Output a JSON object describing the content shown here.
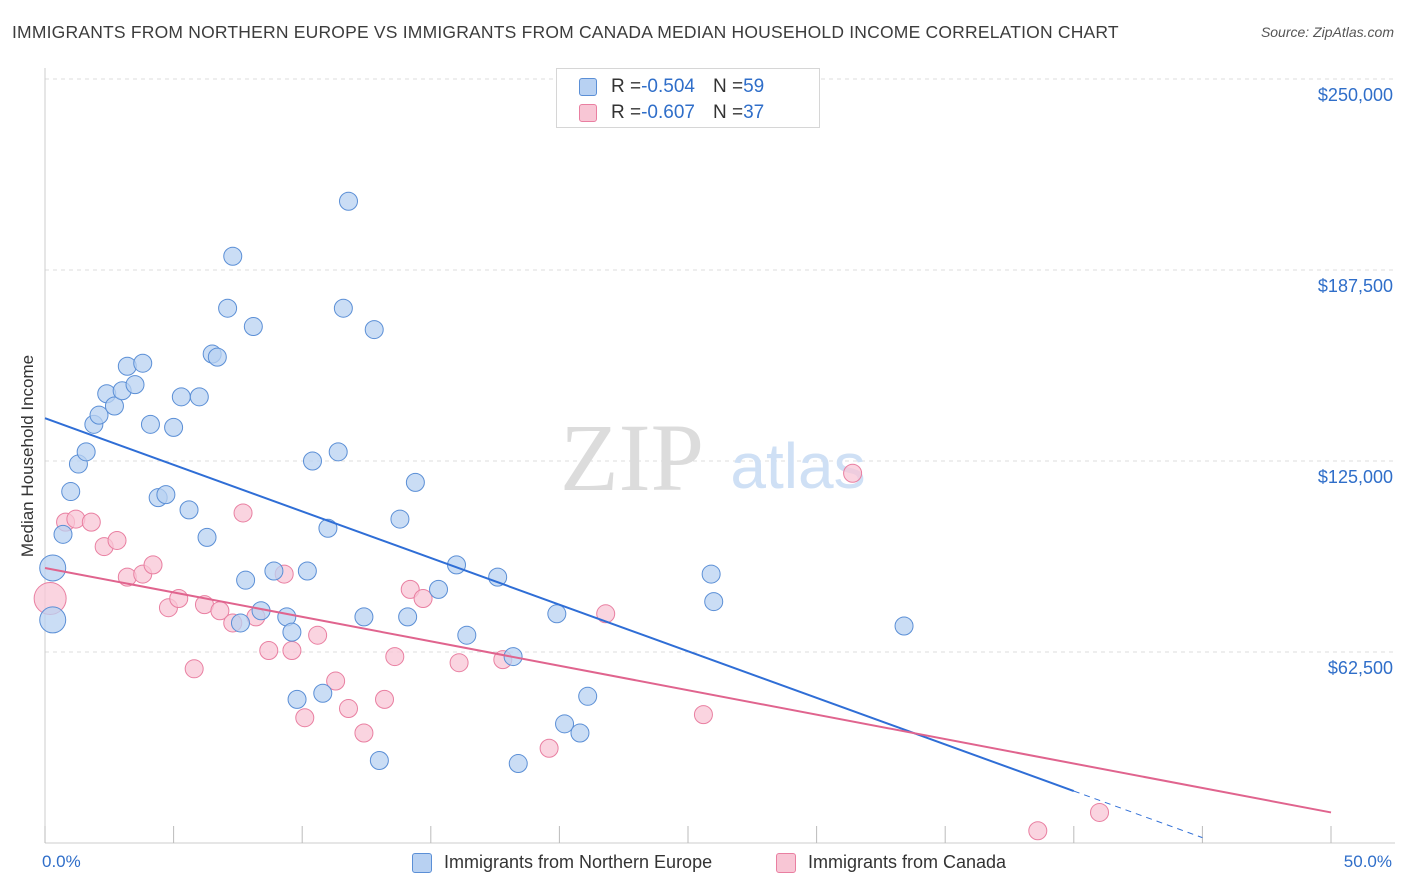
{
  "title": "IMMIGRANTS FROM NORTHERN EUROPE VS IMMIGRANTS FROM CANADA MEDIAN HOUSEHOLD INCOME CORRELATION CHART",
  "source": "Source: ZipAtlas.com",
  "watermark": {
    "zip": "ZIP",
    "atlas": "atlas"
  },
  "legend_top": [
    {
      "r_label": "R = ",
      "r_value": "-0.504",
      "n_label": "N = ",
      "n_value": "59"
    },
    {
      "r_label": "R = ",
      "r_value": "-0.607",
      "n_label": "N = ",
      "n_value": "37"
    }
  ],
  "colors": {
    "blue_fill": "#b8d1f2",
    "blue_stroke": "#5b8fd6",
    "blue_line": "#2f6ed6",
    "pink_fill": "#f8c6d5",
    "pink_stroke": "#e97fa1",
    "pink_line": "#e0648e",
    "axis_label": "#2f6ec9",
    "grid": "#dedede"
  },
  "chart_data": {
    "type": "scatter",
    "title": "IMMIGRANTS FROM NORTHERN EUROPE VS IMMIGRANTS FROM CANADA MEDIAN HOUSEHOLD INCOME CORRELATION CHART",
    "xlabel": "",
    "ylabel": "Median Household Income",
    "xlim": [
      0,
      50
    ],
    "ylim": [
      0,
      250000
    ],
    "x_tick_labels": [
      "0.0%",
      "50.0%"
    ],
    "y_ticks": [
      62500,
      125000,
      187500,
      250000
    ],
    "y_tick_labels": [
      "$62,500",
      "$125,000",
      "$187,500",
      "$250,000"
    ],
    "grid": true,
    "legend_position": "bottom",
    "series": [
      {
        "name": "Immigrants from Northern Europe",
        "color": "#5b8fd6",
        "points": [
          [
            0.3,
            90000
          ],
          [
            0.7,
            101000
          ],
          [
            1.0,
            115000
          ],
          [
            1.3,
            124000
          ],
          [
            1.6,
            128000
          ],
          [
            1.9,
            137000
          ],
          [
            2.1,
            140000
          ],
          [
            2.4,
            147000
          ],
          [
            2.7,
            143000
          ],
          [
            3.0,
            148000
          ],
          [
            3.2,
            156000
          ],
          [
            3.5,
            150000
          ],
          [
            3.8,
            157000
          ],
          [
            4.1,
            137000
          ],
          [
            4.4,
            113000
          ],
          [
            4.7,
            114000
          ],
          [
            5.0,
            136000
          ],
          [
            5.3,
            146000
          ],
          [
            5.6,
            109000
          ],
          [
            6.0,
            146000
          ],
          [
            6.3,
            100000
          ],
          [
            6.5,
            160000
          ],
          [
            6.7,
            159000
          ],
          [
            7.1,
            175000
          ],
          [
            7.3,
            192000
          ],
          [
            7.6,
            72000
          ],
          [
            7.8,
            86000
          ],
          [
            8.1,
            169000
          ],
          [
            8.4,
            76000
          ],
          [
            8.9,
            89000
          ],
          [
            9.4,
            74000
          ],
          [
            9.6,
            69000
          ],
          [
            9.8,
            47000
          ],
          [
            10.2,
            89000
          ],
          [
            10.4,
            125000
          ],
          [
            10.8,
            49000
          ],
          [
            11.0,
            103000
          ],
          [
            11.4,
            128000
          ],
          [
            11.8,
            210000
          ],
          [
            11.6,
            175000
          ],
          [
            12.4,
            74000
          ],
          [
            12.8,
            168000
          ],
          [
            13.0,
            27000
          ],
          [
            13.8,
            106000
          ],
          [
            14.1,
            74000
          ],
          [
            14.4,
            118000
          ],
          [
            15.3,
            83000
          ],
          [
            16.0,
            91000
          ],
          [
            16.4,
            68000
          ],
          [
            17.6,
            87000
          ],
          [
            18.2,
            61000
          ],
          [
            18.4,
            26000
          ],
          [
            19.9,
            75000
          ],
          [
            20.2,
            39000
          ],
          [
            20.8,
            36000
          ],
          [
            21.1,
            48000
          ],
          [
            25.9,
            88000
          ],
          [
            26.0,
            79000
          ],
          [
            33.4,
            71000
          ]
        ]
      },
      {
        "name": "Immigrants from Canada",
        "color": "#e97fa1",
        "points": [
          [
            0.2,
            80000
          ],
          [
            0.8,
            105000
          ],
          [
            1.2,
            106000
          ],
          [
            1.8,
            105000
          ],
          [
            2.3,
            97000
          ],
          [
            2.8,
            99000
          ],
          [
            3.2,
            87000
          ],
          [
            3.8,
            88000
          ],
          [
            4.2,
            91000
          ],
          [
            4.8,
            77000
          ],
          [
            5.2,
            80000
          ],
          [
            5.8,
            57000
          ],
          [
            6.2,
            78000
          ],
          [
            6.8,
            76000
          ],
          [
            7.3,
            72000
          ],
          [
            7.7,
            108000
          ],
          [
            8.2,
            74000
          ],
          [
            8.7,
            63000
          ],
          [
            9.3,
            88000
          ],
          [
            9.6,
            63000
          ],
          [
            10.1,
            41000
          ],
          [
            10.6,
            68000
          ],
          [
            11.3,
            53000
          ],
          [
            11.8,
            44000
          ],
          [
            12.4,
            36000
          ],
          [
            13.2,
            47000
          ],
          [
            13.6,
            61000
          ],
          [
            14.2,
            83000
          ],
          [
            14.7,
            80000
          ],
          [
            16.1,
            59000
          ],
          [
            17.8,
            60000
          ],
          [
            19.6,
            31000
          ],
          [
            21.8,
            75000
          ],
          [
            25.6,
            42000
          ],
          [
            31.4,
            121000
          ],
          [
            38.6,
            4000
          ],
          [
            41.0,
            10000
          ]
        ]
      }
    ],
    "trendlines": [
      {
        "series": "Immigrants from Northern Europe",
        "x": [
          0,
          40
        ],
        "y": [
          139000,
          17000
        ],
        "dashed_extension_x": [
          40,
          45
        ]
      },
      {
        "series": "Immigrants from Canada",
        "x": [
          0,
          50
        ],
        "y": [
          90000,
          10000
        ]
      }
    ]
  }
}
